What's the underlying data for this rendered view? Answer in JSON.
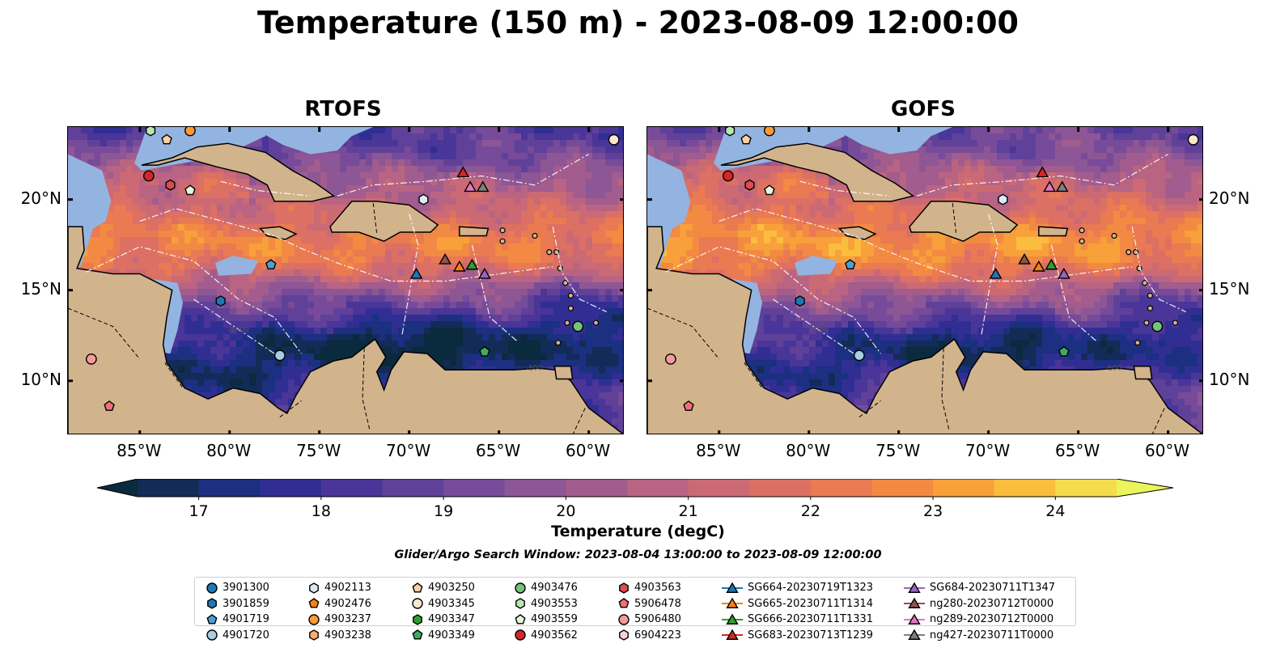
{
  "title": "Temperature (150 m) - 2023-08-09 12:00:00",
  "panels": [
    {
      "id": "rtofs",
      "title": "RTOFS"
    },
    {
      "id": "gofs",
      "title": "GOFS"
    }
  ],
  "map": {
    "lon_range": [
      -89,
      -58
    ],
    "lat_range": [
      7,
      24
    ],
    "lon_ticks": [
      "85°W",
      "80°W",
      "75°W",
      "70°W",
      "65°W",
      "60°W"
    ],
    "lat_ticks": [
      "20°N",
      "15°N",
      "10°N"
    ],
    "contour_labels": [
      "-1000",
      "-100"
    ]
  },
  "colorbar": {
    "label": "Temperature (degC)",
    "ticks": [
      "17",
      "18",
      "19",
      "20",
      "21",
      "22",
      "23",
      "24"
    ],
    "range": [
      16.5,
      24.5
    ],
    "colors": [
      "#0a2a3d",
      "#132b57",
      "#1b3080",
      "#302e93",
      "#4a3598",
      "#5f4199",
      "#774b99",
      "#8d5695",
      "#a25c8d",
      "#b86482",
      "#cb6a74",
      "#dc7064",
      "#e97a52",
      "#f28a43",
      "#f8a03a",
      "#fbbd3d",
      "#f6dc4c",
      "#e9f55a"
    ]
  },
  "colors": {
    "land": "#d2b48c",
    "shallow_water": "#93b4e0"
  },
  "search_window": "Glider/Argo Search Window: 2023-08-04 13:00:00 to 2023-08-09 12:00:00",
  "legend": [
    {
      "label": "3901300",
      "marker": "circle",
      "color": "#1f77b4"
    },
    {
      "label": "3901859",
      "marker": "hexagon",
      "color": "#1f77b4"
    },
    {
      "label": "4901719",
      "marker": "pentagon",
      "color": "#4e9fd6"
    },
    {
      "label": "4901720",
      "marker": "circle",
      "color": "#a6cee3"
    },
    {
      "label": "4902113",
      "marker": "hexagon",
      "color": "#deebf7"
    },
    {
      "label": "4902476",
      "marker": "pentagon",
      "color": "#ff7f0e"
    },
    {
      "label": "4903237",
      "marker": "circle",
      "color": "#ff9933"
    },
    {
      "label": "4903238",
      "marker": "hexagon",
      "color": "#fdae6b"
    },
    {
      "label": "4903250",
      "marker": "pentagon",
      "color": "#fdd0a2"
    },
    {
      "label": "4903345",
      "marker": "circle",
      "color": "#fee6ce"
    },
    {
      "label": "4903347",
      "marker": "hexagon",
      "color": "#2ca02c"
    },
    {
      "label": "4903349",
      "marker": "pentagon",
      "color": "#41ab5d"
    },
    {
      "label": "4903476",
      "marker": "circle",
      "color": "#74c476"
    },
    {
      "label": "4903553",
      "marker": "hexagon",
      "color": "#b6e8b0"
    },
    {
      "label": "4903559",
      "marker": "pentagon",
      "color": "#e5f5e0"
    },
    {
      "label": "4903562",
      "marker": "circle",
      "color": "#d62728"
    },
    {
      "label": "4903563",
      "marker": "hexagon",
      "color": "#de4d4d"
    },
    {
      "label": "5906478",
      "marker": "pentagon",
      "color": "#f0707a"
    },
    {
      "label": "5906480",
      "marker": "circle",
      "color": "#f59a9a"
    },
    {
      "label": "6904223",
      "marker": "hexagon",
      "color": "#fcd2d2"
    },
    {
      "label": "SG664-20230719T1323",
      "marker": "triangle-line",
      "color": "#1f77b4"
    },
    {
      "label": "SG665-20230711T1314",
      "marker": "triangle-line",
      "color": "#ff7f0e"
    },
    {
      "label": "SG666-20230711T1331",
      "marker": "triangle-line",
      "color": "#2ca02c"
    },
    {
      "label": "SG683-20230713T1239",
      "marker": "triangle-line",
      "color": "#d62728"
    },
    {
      "label": "SG684-20230711T1347",
      "marker": "triangle-line",
      "color": "#9467bd"
    },
    {
      "label": "ng280-20230712T0000",
      "marker": "triangle-line",
      "color": "#8c564b"
    },
    {
      "label": "ng289-20230712T0000",
      "marker": "triangle-line",
      "color": "#e377c2"
    },
    {
      "label": "ng427-20230711T0000",
      "marker": "triangle-line",
      "color": "#7f7f7f"
    }
  ],
  "observations": [
    {
      "label": "4903562",
      "lon": -84.5,
      "lat": 21.3
    },
    {
      "label": "4903563",
      "lon": -83.3,
      "lat": 20.8
    },
    {
      "label": "4903559",
      "lon": -82.2,
      "lat": 20.5
    },
    {
      "label": "4903553",
      "lon": -84.4,
      "lat": 23.8
    },
    {
      "label": "4903250",
      "lon": -83.5,
      "lat": 23.3
    },
    {
      "label": "4903237",
      "lon": -82.2,
      "lat": 23.8
    },
    {
      "label": "4903345",
      "lon": -58.6,
      "lat": 23.3
    },
    {
      "label": "4902113",
      "lon": -69.2,
      "lat": 20.0
    },
    {
      "label": "4901719",
      "lon": -77.7,
      "lat": 16.4
    },
    {
      "label": "3901859",
      "lon": -80.5,
      "lat": 14.4
    },
    {
      "label": "4901720",
      "lon": -77.2,
      "lat": 11.4
    },
    {
      "label": "5906480",
      "lon": -87.7,
      "lat": 11.2
    },
    {
      "label": "5906478",
      "lon": -86.7,
      "lat": 8.6
    },
    {
      "label": "4903349",
      "lon": -65.8,
      "lat": 11.6
    },
    {
      "label": "4903476",
      "lon": -60.6,
      "lat": 13.0
    },
    {
      "label": "SG664-20230719T1323",
      "lon": -69.6,
      "lat": 15.9
    },
    {
      "label": "SG665-20230711T1314",
      "lon": -67.2,
      "lat": 16.3
    },
    {
      "label": "SG666-20230711T1331",
      "lon": -66.5,
      "lat": 16.4
    },
    {
      "label": "SG684-20230711T1347",
      "lon": -65.8,
      "lat": 15.9
    },
    {
      "label": "ng280-20230712T0000",
      "lon": -68.0,
      "lat": 16.7
    },
    {
      "label": "SG683-20230713T1239",
      "lon": -67.0,
      "lat": 21.5
    },
    {
      "label": "ng289-20230712T0000",
      "lon": -66.6,
      "lat": 20.7
    },
    {
      "label": "ng427-20230711T0000",
      "lon": -65.9,
      "lat": 20.7
    }
  ]
}
